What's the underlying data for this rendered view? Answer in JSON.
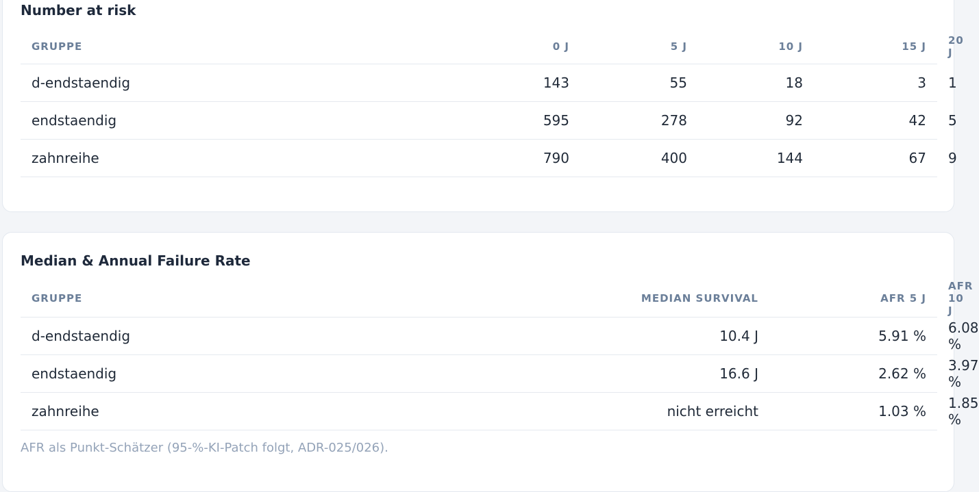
{
  "tables": [
    {
      "title": "Number at risk",
      "header": [
        "GRUPPE",
        "0 J",
        "5 J",
        "10 J",
        "15 J",
        "20 J"
      ],
      "rows": [
        [
          "d-endstaendig",
          "143",
          "55",
          "18",
          "3",
          "1"
        ],
        [
          "endstaendig",
          "595",
          "278",
          "92",
          "42",
          "5"
        ],
        [
          "zahnreihe",
          "790",
          "400",
          "144",
          "67",
          "9"
        ]
      ]
    },
    {
      "title": "Median & Annual Failure Rate",
      "header": [
        "GRUPPE",
        "MEDIAN SURVIVAL",
        "AFR 5 J",
        "AFR 10 J"
      ],
      "rows": [
        [
          "d-endstaendig",
          "10.4 J",
          "5.91 %",
          "6.08 %"
        ],
        [
          "endstaendig",
          "16.6 J",
          "2.62 %",
          "3.97 %"
        ],
        [
          "zahnreihe",
          "nicht erreicht",
          "1.03 %",
          "1.85 %"
        ]
      ],
      "footnote": "AFR als Punkt-Schätzer (95-%-KI-Patch folgt, ADR-025/026)."
    }
  ]
}
